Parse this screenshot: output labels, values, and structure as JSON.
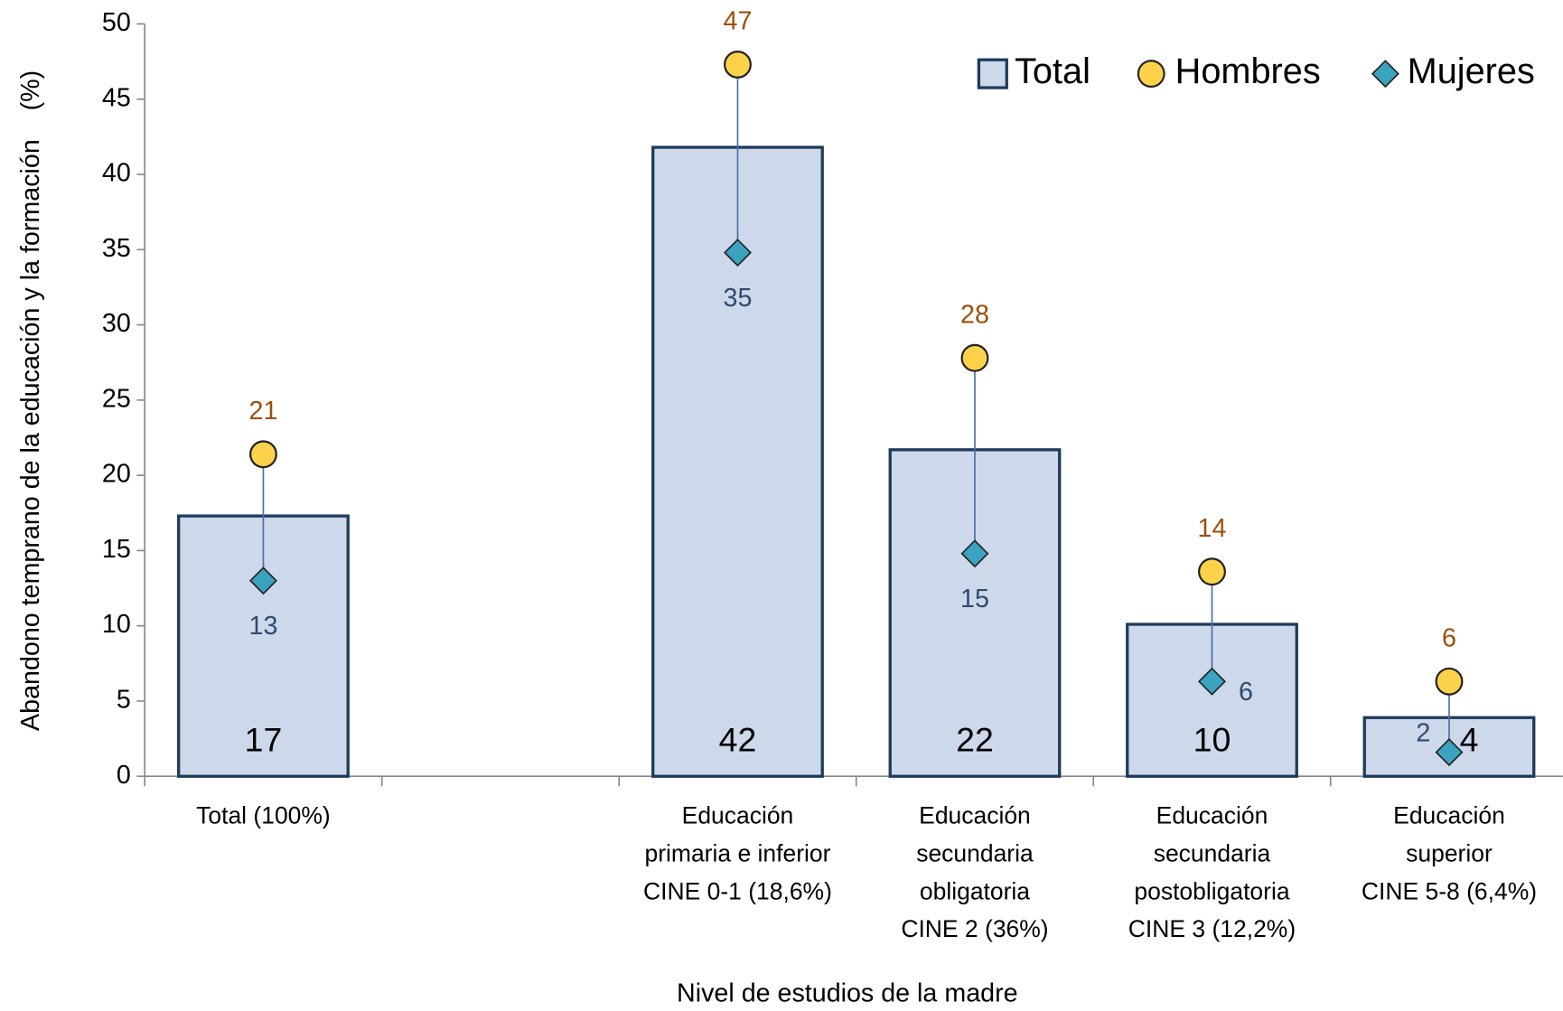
{
  "chart_data": {
    "type": "bar",
    "y_axis_label": "Abandono temprano de la educación y la formación    (%)",
    "x_axis_label": "Nivel de estudios de la madre",
    "categories": [
      [
        "Total (100%)"
      ],
      null,
      [
        "Educación",
        "primaria e inferior",
        "CINE 0-1 (18,6%)"
      ],
      [
        "Educación",
        "secundaria",
        "obligatoria",
        "CINE 2 (36%)"
      ],
      [
        "Educación",
        "secundaria",
        "postobligatoria",
        "CINE 3 (12,2%)"
      ],
      [
        "Educación",
        "superior",
        "CINE 5-8 (6,4%)"
      ]
    ],
    "series": [
      {
        "name": "Total",
        "type": "bar",
        "color": "#cdd9ea",
        "values": [
          17.3,
          null,
          41.8,
          21.7,
          10.1,
          3.9
        ],
        "value_labels": [
          "17",
          null,
          "42",
          "22",
          "10",
          "4"
        ]
      },
      {
        "name": "Hombres",
        "type": "scatter",
        "color": "#fdd24a",
        "label_color": "#9c4f0a",
        "values": [
          21.4,
          null,
          47.3,
          27.8,
          13.6,
          6.3
        ],
        "value_labels": [
          "21",
          null,
          "47",
          "28",
          "14",
          "6"
        ]
      },
      {
        "name": "Mujeres",
        "type": "scatter",
        "color": "#3ba3c0",
        "label_color": "#2d4a6f",
        "values": [
          13.0,
          null,
          34.8,
          14.8,
          6.3,
          1.6
        ],
        "value_labels": [
          "13",
          null,
          "35",
          "15",
          "6",
          "2"
        ]
      }
    ],
    "ylim": [
      0,
      50
    ],
    "yticks": [
      0,
      5,
      10,
      15,
      20,
      25,
      30,
      35,
      40,
      45,
      50
    ],
    "legend": "top-right"
  }
}
